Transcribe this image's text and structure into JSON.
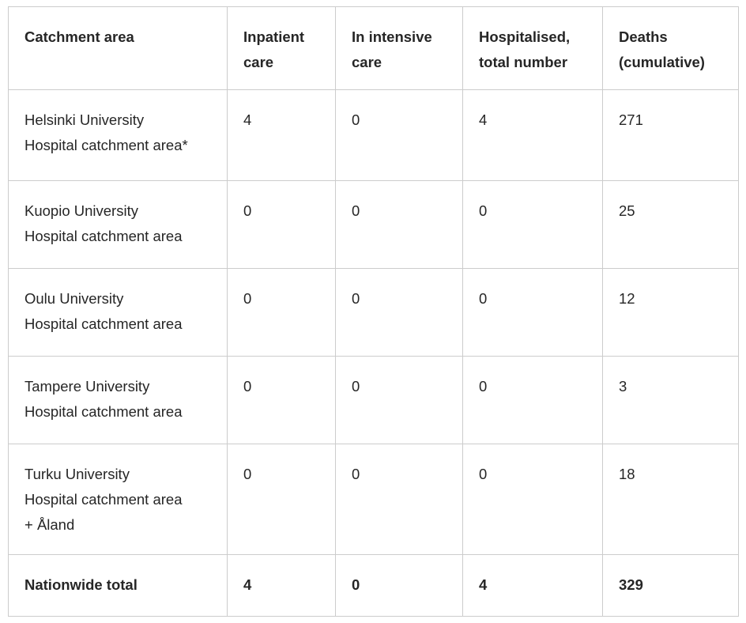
{
  "table": {
    "columns": [
      {
        "label": "Catchment area"
      },
      {
        "label": "Inpatient\ncare"
      },
      {
        "label": "In intensive\ncare"
      },
      {
        "label": "Hospitalised,\ntotal number"
      },
      {
        "label": "Deaths\n(cumulative)"
      }
    ],
    "rows": [
      {
        "area": "Helsinki University\nHospital catchment area*",
        "inpatient": "4",
        "intensive": "0",
        "hospitalised": "4",
        "deaths": "271"
      },
      {
        "area": "Kuopio University\nHospital catchment area",
        "inpatient": "0",
        "intensive": "0",
        "hospitalised": "0",
        "deaths": "25"
      },
      {
        "area": "Oulu University\nHospital catchment area",
        "inpatient": "0",
        "intensive": "0",
        "hospitalised": "0",
        "deaths": "12"
      },
      {
        "area": "Tampere University\nHospital catchment area",
        "inpatient": "0",
        "intensive": "0",
        "hospitalised": "0",
        "deaths": "3"
      },
      {
        "area": "Turku University\nHospital catchment area\n+ Åland",
        "inpatient": "0",
        "intensive": "0",
        "hospitalised": "0",
        "deaths": "18"
      },
      {
        "area": "Nationwide total",
        "inpatient": "4",
        "intensive": "0",
        "hospitalised": "4",
        "deaths": "329"
      }
    ]
  },
  "colors": {
    "border": "#cccccc",
    "text": "#262626",
    "background": "#ffffff"
  }
}
